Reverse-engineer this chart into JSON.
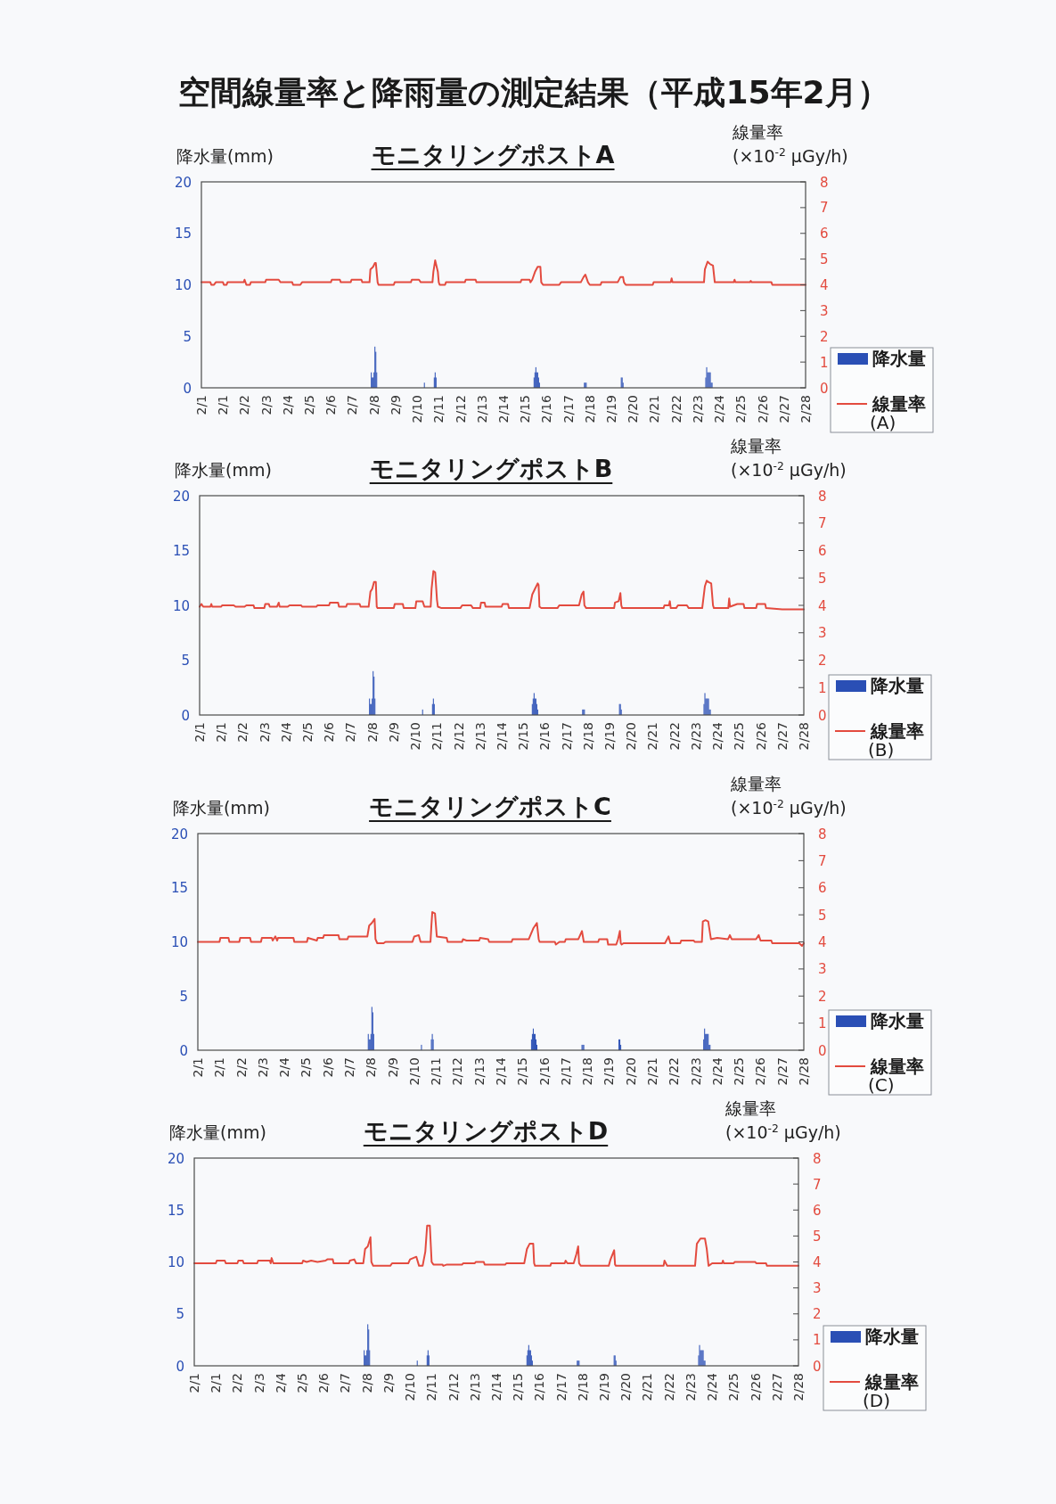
{
  "chart_data": [
    {
      "type": "other",
      "title": "空間線量率と降雨量の測定結果（平成15年2月）"
    },
    {
      "type": "bar",
      "title": "モニタリングポストA",
      "ylabel": "降水量(mm)",
      "y2label": "線量率 (×10$^{-2}$ μGy/h)",
      "legend": "right",
      "xlim": [
        "--02-01T00:00",
        "--03-01T00:00"
      ],
      "xticks": [
        {
          "value": "--02-01T00:00",
          "label": "2/1"
        },
        {
          "value": "--02-01T23:59",
          "label": "2/1"
        },
        {
          "value": "--02-02T23:59",
          "label": "2/2"
        },
        {
          "value": "--02-03T23:59",
          "label": "2/3"
        },
        {
          "value": "--02-04T23:59",
          "label": "2/4"
        },
        {
          "value": "--02-05T23:59",
          "label": "2/5"
        },
        {
          "value": "--02-06T23:59",
          "label": "2/6"
        },
        {
          "value": "--02-07T23:59",
          "label": "2/7"
        },
        {
          "value": "--02-08T23:59",
          "label": "2/8"
        },
        {
          "value": "--02-09T23:59",
          "label": "2/9"
        },
        {
          "value": "--02-10T23:59",
          "label": "2/10"
        },
        {
          "value": "--02-11T23:59",
          "label": "2/11"
        },
        {
          "value": "--02-12T23:59",
          "label": "2/12"
        },
        {
          "value": "--02-13T23:59",
          "label": "2/13"
        },
        {
          "value": "--02-14T23:59",
          "label": "2/14"
        },
        {
          "value": "--02-15T23:59",
          "label": "2/15"
        },
        {
          "value": "--02-16T23:59",
          "label": "2/16"
        },
        {
          "value": "--02-17T23:59",
          "label": "2/17"
        },
        {
          "value": "--02-18T23:59",
          "label": "2/18"
        },
        {
          "value": "--02-19T23:59",
          "label": "2/19"
        },
        {
          "value": "--02-20T23:59",
          "label": "2/20"
        },
        {
          "value": "--02-21T23:59",
          "label": "2/21"
        },
        {
          "value": "--02-22T23:59",
          "label": "2/22"
        },
        {
          "value": "--02-23T23:59",
          "label": "2/23"
        },
        {
          "value": "--02-24T23:59",
          "label": "2/24"
        },
        {
          "value": "--02-25T23:59",
          "label": "2/25"
        },
        {
          "value": "--02-26T23:59",
          "label": "2/26"
        },
        {
          "value": "--02-27T23:59",
          "label": "2/27"
        },
        {
          "value": "--02-28T23:59",
          "label": "2/28"
        }
      ],
      "ylim": [
        0,
        20
      ],
      "yticks": [
        0,
        5,
        10,
        15,
        20
      ],
      "y2lim": [
        0,
        8
      ],
      "y2ticks": [
        0,
        1,
        2,
        3,
        4,
        5,
        6,
        7,
        8
      ],
      "series": [
        {
          "name": "降水量",
          "type": "bar",
          "color": "#2a4fb5",
          "x": [
            "--02-08T21:00",
            "--02-08T22:00",
            "--02-08T23:00",
            "--02-09T00:00",
            "--02-09T01:00",
            "--02-09T02:00",
            "--02-09T03:00",
            "--02-11T08:00",
            "--02-11T19:00",
            "--02-11T20:00",
            "--02-11T21:00",
            "--02-16T10:00",
            "--02-16T11:00",
            "--02-16T12:00",
            "--02-16T13:00",
            "--02-16T14:00",
            "--02-16T15:00",
            "--02-16T16:00",
            "--02-18T18:00",
            "--02-18T19:00",
            "--02-18T20:00",
            "--02-20T11:00",
            "--02-20T12:00",
            "--02-20T13:00",
            "--02-24T09:00",
            "--02-24T10:00",
            "--02-24T11:00",
            "--02-24T12:00",
            "--02-24T13:00",
            "--02-24T14:00",
            "--02-24T15:00",
            "--02-24T16:00"
          ],
          "values": [
            1.5,
            1.0,
            1.0,
            1.5,
            4.0,
            3.5,
            1.5,
            0.5,
            1.0,
            1.5,
            1.0,
            1.0,
            1.5,
            2.0,
            1.5,
            1.5,
            1.0,
            0.5,
            0.5,
            0.5,
            0.5,
            1.0,
            1.0,
            0.5,
            1.0,
            2.0,
            1.5,
            1.5,
            1.5,
            1.5,
            0.5,
            0.5
          ]
        },
        {
          "name": "線量率 (A)",
          "type": "line",
          "axis": "y2",
          "color": "#e34b3f",
          "x": [
            "--02-01T00:00",
            "--02-01T10:00",
            "--02-01T11:00",
            "--02-01T14:00",
            "--02-01T16:00",
            "--02-02T00:00",
            "--02-02T01:00",
            "--02-02T04:00",
            "--02-02T05:00",
            "--02-02T23:00",
            "--02-03T00:00",
            "--02-03T01:00",
            "--02-03T02:00",
            "--02-03T06:00",
            "--02-03T07:00",
            "--02-03T23:00",
            "--02-04T00:00",
            "--02-04T14:00",
            "--02-04T16:00",
            "--02-05T05:00",
            "--02-05T06:00",
            "--02-05T14:00",
            "--02-05T16:00",
            "--02-07T00:00",
            "--02-07T01:00",
            "--02-07T10:00",
            "--02-07T11:00",
            "--02-07T22:00",
            "--02-07T23:00",
            "--02-08T10:00",
            "--02-08T11:00",
            "--02-08T19:00",
            "--02-08T20:00",
            "--02-08T23:00",
            "--02-09T01:00",
            "--02-09T02:00",
            "--02-09T04:00",
            "--02-09T05:00",
            "--02-09T22:00",
            "--02-09T23:00",
            "--02-10T17:00",
            "--02-10T18:00",
            "--02-11T02:00",
            "--02-11T04:00",
            "--02-11T17:00",
            "--02-11T18:00",
            "--02-11T20:00",
            "--02-11T23:00",
            "--02-12T00:00",
            "--02-12T01:00",
            "--02-12T07:00",
            "--02-12T08:00",
            "--02-13T05:00",
            "--02-13T06:00",
            "--02-13T17:00",
            "--02-13T18:00",
            "--02-15T19:00",
            "--02-15T20:00",
            "--02-16T05:00",
            "--02-16T06:00",
            "--02-16T08:00",
            "--02-16T11:00",
            "--02-16T14:00",
            "--02-16T17:00",
            "--02-16T18:00",
            "--02-16T20:00",
            "--02-17T14:00",
            "--02-17T16:00",
            "--02-18T14:00",
            "--02-18T17:00",
            "--02-18T19:00",
            "--02-18T22:00",
            "--02-19T00:00",
            "--02-19T12:00",
            "--02-19T13:00",
            "--02-20T07:00",
            "--02-20T10:00",
            "--02-20T13:00",
            "--02-20T14:00",
            "--02-20T16:00",
            "--02-21T22:00",
            "--02-21T23:00",
            "--02-22T18:00",
            "--02-22T19:00",
            "--02-22T20:00",
            "--02-24T07:00",
            "--02-24T08:00",
            "--02-24T11:00",
            "--02-24T14:00",
            "--02-24T17:00",
            "--02-24T19:00",
            "--02-25T16:00",
            "--02-25T17:00",
            "--02-25T18:00",
            "--02-26T10:00",
            "--02-26T11:00",
            "--02-26T12:00",
            "--02-27T10:00",
            "--02-27T11:00",
            "--03-01T00:00"
          ],
          "values": [
            4.1,
            4.1,
            4.0,
            4.0,
            4.1,
            4.1,
            4.0,
            4.0,
            4.1,
            4.1,
            4.2,
            4.1,
            4.0,
            4.0,
            4.1,
            4.1,
            4.2,
            4.2,
            4.1,
            4.1,
            4.0,
            4.0,
            4.1,
            4.1,
            4.2,
            4.2,
            4.1,
            4.1,
            4.2,
            4.2,
            4.1,
            4.1,
            4.6,
            4.7,
            4.85,
            4.85,
            4.1,
            4.0,
            4.0,
            4.1,
            4.1,
            4.2,
            4.2,
            4.1,
            4.1,
            4.5,
            4.95,
            4.5,
            4.1,
            4.0,
            4.0,
            4.1,
            4.1,
            4.2,
            4.2,
            4.1,
            4.1,
            4.2,
            4.2,
            4.1,
            4.2,
            4.5,
            4.7,
            4.7,
            4.1,
            4.0,
            4.0,
            4.1,
            4.1,
            4.3,
            4.4,
            4.1,
            4.0,
            4.0,
            4.1,
            4.1,
            4.3,
            4.3,
            4.1,
            4.0,
            4.0,
            4.1,
            4.1,
            4.25,
            4.1,
            4.1,
            4.6,
            4.9,
            4.8,
            4.75,
            4.1,
            4.1,
            4.2,
            4.1,
            4.1,
            4.15,
            4.1,
            4.1,
            4.0,
            4.0
          ]
        }
      ]
    },
    {
      "type": "bar",
      "title": "モニタリングポストB",
      "ylabel": "降水量(mm)",
      "y2label": "線量率 (×10$^{-2}$ μGy/h)",
      "legend": "right",
      "xlim": [
        "--02-01T00:00",
        "--03-01T00:00"
      ],
      "xticks": [
        {
          "value": "--02-01T00:00",
          "label": "2/1"
        },
        {
          "value": "--02-01T23:59",
          "label": "2/1"
        },
        {
          "value": "--02-02T23:59",
          "label": "2/2"
        },
        {
          "value": "--02-03T23:59",
          "label": "2/3"
        },
        {
          "value": "--02-04T23:59",
          "label": "2/4"
        },
        {
          "value": "--02-05T23:59",
          "label": "2/5"
        },
        {
          "value": "--02-06T23:59",
          "label": "2/6"
        },
        {
          "value": "--02-07T23:59",
          "label": "2/7"
        },
        {
          "value": "--02-08T23:59",
          "label": "2/8"
        },
        {
          "value": "--02-09T23:59",
          "label": "2/9"
        },
        {
          "value": "--02-10T23:59",
          "label": "2/10"
        },
        {
          "value": "--02-11T23:59",
          "label": "2/11"
        },
        {
          "value": "--02-12T23:59",
          "label": "2/12"
        },
        {
          "value": "--02-13T23:59",
          "label": "2/13"
        },
        {
          "value": "--02-14T23:59",
          "label": "2/14"
        },
        {
          "value": "--02-15T23:59",
          "label": "2/15"
        },
        {
          "value": "--02-16T23:59",
          "label": "2/16"
        },
        {
          "value": "--02-17T23:59",
          "label": "2/17"
        },
        {
          "value": "--02-18T23:59",
          "label": "2/18"
        },
        {
          "value": "--02-19T23:59",
          "label": "2/19"
        },
        {
          "value": "--02-20T23:59",
          "label": "2/20"
        },
        {
          "value": "--02-21T23:59",
          "label": "2/21"
        },
        {
          "value": "--02-22T23:59",
          "label": "2/22"
        },
        {
          "value": "--02-23T23:59",
          "label": "2/23"
        },
        {
          "value": "--02-24T23:59",
          "label": "2/24"
        },
        {
          "value": "--02-25T23:59",
          "label": "2/25"
        },
        {
          "value": "--02-26T23:59",
          "label": "2/26"
        },
        {
          "value": "--02-27T23:59",
          "label": "2/27"
        },
        {
          "value": "--02-28T23:59",
          "label": "2/28"
        }
      ],
      "ylim": [
        0,
        20
      ],
      "yticks": [
        0,
        5,
        10,
        15,
        20
      ],
      "y2lim": [
        0,
        8
      ],
      "y2ticks": [
        0,
        1,
        2,
        3,
        4,
        5,
        6,
        7,
        8
      ],
      "series": [
        {
          "name": "降水量",
          "type": "bar",
          "color": "#2a4fb5",
          "x": [
            "--02-08T21:00",
            "--02-08T22:00",
            "--02-08T23:00",
            "--02-09T00:00",
            "--02-09T01:00",
            "--02-09T02:00",
            "--02-09T03:00",
            "--02-11T08:00",
            "--02-11T19:00",
            "--02-11T20:00",
            "--02-11T21:00",
            "--02-16T10:00",
            "--02-16T11:00",
            "--02-16T12:00",
            "--02-16T13:00",
            "--02-16T14:00",
            "--02-16T15:00",
            "--02-16T16:00",
            "--02-18T18:00",
            "--02-18T19:00",
            "--02-18T20:00",
            "--02-20T11:00",
            "--02-20T12:00",
            "--02-20T13:00",
            "--02-24T09:00",
            "--02-24T10:00",
            "--02-24T11:00",
            "--02-24T12:00",
            "--02-24T13:00",
            "--02-24T14:00",
            "--02-24T15:00",
            "--02-24T16:00"
          ],
          "values": [
            1.5,
            1.0,
            1.0,
            1.5,
            4.0,
            3.5,
            1.5,
            0.5,
            1.0,
            1.5,
            1.0,
            1.0,
            1.5,
            2.0,
            1.5,
            1.5,
            1.0,
            0.5,
            0.5,
            0.5,
            0.5,
            1.0,
            1.0,
            0.5,
            1.0,
            2.0,
            1.5,
            1.5,
            1.5,
            1.5,
            0.5,
            0.5
          ]
        },
        {
          "name": "線量率 (B)",
          "type": "line",
          "axis": "y2",
          "color": "#e34b3f",
          "x": [
            "--02-01T00:00",
            "--02-01T02:00",
            "--02-01T04:00",
            "--02-01T12:00",
            "--02-01T13:00",
            "--02-01T14:00",
            "--02-02T00:00",
            "--02-02T01:00",
            "--02-02T14:00",
            "--02-02T16:00",
            "--02-03T02:00",
            "--02-03T04:00",
            "--02-03T12:00",
            "--02-03T13:00",
            "--02-04T00:00",
            "--02-04T01:00",
            "--02-04T05:00",
            "--02-04T06:00",
            "--02-04T14:00",
            "--02-04T16:00",
            "--02-04T17:00",
            "--02-05T02:00",
            "--02-05T04:00",
            "--02-05T17:00",
            "--02-05T18:00",
            "--02-06T10:00",
            "--02-06T11:00",
            "--02-07T00:00",
            "--02-07T01:00",
            "--02-07T10:00",
            "--02-07T11:00",
            "--02-07T19:00",
            "--02-07T20:00",
            "--02-08T10:00",
            "--02-08T11:00",
            "--02-08T20:00",
            "--02-08T22:00",
            "--02-09T00:00",
            "--02-09T02:00",
            "--02-09T04:00",
            "--02-09T05:00",
            "--02-09T06:00",
            "--02-10T00:00",
            "--02-10T01:00",
            "--02-10T10:00",
            "--02-10T11:00",
            "--02-11T00:00",
            "--02-11T01:00",
            "--02-11T08:00",
            "--02-11T10:00",
            "--02-11T17:00",
            "--02-11T18:00",
            "--02-11T20:00",
            "--02-11T22:00",
            "--02-12T00:00",
            "--02-12T01:00",
            "--02-12T05:00",
            "--02-13T02:00",
            "--02-13T04:00",
            "--02-13T14:00",
            "--02-13T16:00",
            "--02-14T00:00",
            "--02-14T01:00",
            "--02-14T05:00",
            "--02-14T06:00",
            "--02-15T00:00",
            "--02-15T01:00",
            "--02-15T07:00",
            "--02-15T08:00",
            "--02-16T07:00",
            "--02-16T10:00",
            "--02-16T13:00",
            "--02-16T16:00",
            "--02-16T17:00",
            "--02-16T18:00",
            "--02-16T20:00",
            "--02-17T14:00",
            "--02-17T16:00",
            "--02-18T14:00",
            "--02-18T17:00",
            "--02-18T19:00",
            "--02-18T20:00",
            "--02-18T22:00",
            "--02-20T05:00",
            "--02-20T06:00",
            "--02-20T10:00",
            "--02-20T12:00",
            "--02-20T13:00",
            "--02-20T14:00",
            "--02-22T12:00",
            "--02-22T13:00",
            "--02-22T18:00",
            "--02-22T19:00",
            "--02-22T20:00",
            "--02-23T02:00",
            "--02-23T04:00",
            "--02-23T14:00",
            "--02-23T16:00",
            "--02-24T07:00",
            "--02-24T10:00",
            "--02-24T12:00",
            "--02-24T14:00",
            "--02-24T17:00",
            "--02-24T19:00",
            "--02-24T20:00",
            "--02-25T12:00",
            "--02-25T13:00",
            "--02-25T14:00",
            "--02-25T22:00",
            "--02-26T05:00",
            "--02-26T06:00",
            "--02-26T19:00",
            "--02-26T20:00",
            "--02-27T05:00",
            "--02-27T06:00",
            "--02-28T00:00",
            "--03-01T00:00"
          ],
          "values": [
            3.95,
            4.05,
            3.95,
            3.95,
            4.05,
            3.95,
            3.95,
            4.0,
            4.0,
            3.95,
            3.95,
            4.0,
            4.0,
            3.9,
            3.9,
            4.05,
            4.05,
            3.95,
            3.95,
            4.1,
            3.95,
            3.95,
            4.0,
            4.0,
            3.95,
            3.95,
            4.0,
            4.0,
            4.1,
            4.1,
            3.95,
            3.95,
            4.05,
            4.05,
            3.95,
            3.95,
            4.5,
            4.6,
            4.85,
            4.85,
            3.95,
            3.9,
            3.9,
            4.05,
            4.05,
            3.9,
            3.9,
            4.15,
            4.15,
            3.95,
            3.95,
            4.6,
            5.25,
            5.2,
            4.2,
            3.95,
            3.9,
            3.9,
            4.0,
            4.0,
            3.9,
            3.9,
            4.1,
            4.1,
            3.95,
            3.95,
            4.05,
            4.05,
            3.9,
            3.9,
            4.4,
            4.6,
            4.8,
            4.75,
            3.95,
            3.9,
            3.9,
            4.0,
            4.0,
            4.4,
            4.5,
            4.0,
            3.9,
            3.9,
            4.1,
            4.15,
            4.45,
            4.0,
            3.9,
            3.9,
            4.0,
            4.0,
            4.15,
            3.9,
            3.9,
            4.0,
            4.0,
            3.9,
            3.9,
            4.7,
            4.9,
            4.85,
            4.8,
            4.0,
            3.9,
            3.9,
            4.25,
            3.95,
            4.05,
            4.05,
            3.9,
            3.9,
            4.05,
            4.05,
            3.9,
            3.85,
            3.85
          ]
        }
      ]
    },
    {
      "type": "bar",
      "title": "モニタリングポストC",
      "ylabel": "降水量(mm)",
      "y2label": "線量率 (×10$^{-2}$ μGy/h)",
      "legend": "right",
      "xlim": [
        "--02-01T00:00",
        "--03-01T00:00"
      ],
      "xticks": [
        {
          "value": "--02-01T00:00",
          "label": "2/1"
        },
        {
          "value": "--02-01T23:59",
          "label": "2/1"
        },
        {
          "value": "--02-02T23:59",
          "label": "2/2"
        },
        {
          "value": "--02-03T23:59",
          "label": "2/3"
        },
        {
          "value": "--02-04T23:59",
          "label": "2/4"
        },
        {
          "value": "--02-05T23:59",
          "label": "2/5"
        },
        {
          "value": "--02-06T23:59",
          "label": "2/6"
        },
        {
          "value": "--02-07T23:59",
          "label": "2/7"
        },
        {
          "value": "--02-08T23:59",
          "label": "2/8"
        },
        {
          "value": "--02-09T23:59",
          "label": "2/9"
        },
        {
          "value": "--02-10T23:59",
          "label": "2/10"
        },
        {
          "value": "--02-11T23:59",
          "label": "2/11"
        },
        {
          "value": "--02-12T23:59",
          "label": "2/12"
        },
        {
          "value": "--02-13T23:59",
          "label": "2/13"
        },
        {
          "value": "--02-14T23:59",
          "label": "2/14"
        },
        {
          "value": "--02-15T23:59",
          "label": "2/15"
        },
        {
          "value": "--02-16T23:59",
          "label": "2/16"
        },
        {
          "value": "--02-17T23:59",
          "label": "2/17"
        },
        {
          "value": "--02-18T23:59",
          "label": "2/18"
        },
        {
          "value": "--02-19T23:59",
          "label": "2/19"
        },
        {
          "value": "--02-20T23:59",
          "label": "2/20"
        },
        {
          "value": "--02-21T23:59",
          "label": "2/21"
        },
        {
          "value": "--02-22T23:59",
          "label": "2/22"
        },
        {
          "value": "--02-23T23:59",
          "label": "2/23"
        },
        {
          "value": "--02-24T23:59",
          "label": "2/24"
        },
        {
          "value": "--02-25T23:59",
          "label": "2/25"
        },
        {
          "value": "--02-26T23:59",
          "label": "2/26"
        },
        {
          "value": "--02-27T23:59",
          "label": "2/27"
        },
        {
          "value": "--02-28T23:59",
          "label": "2/28"
        }
      ],
      "ylim": [
        0,
        20
      ],
      "yticks": [
        0,
        5,
        10,
        15,
        20
      ],
      "y2lim": [
        0,
        8
      ],
      "y2ticks": [
        0,
        1,
        2,
        3,
        4,
        5,
        6,
        7,
        8
      ],
      "series": [
        {
          "name": "降水量",
          "type": "bar",
          "color": "#2a4fb5",
          "x": [
            "--02-08T21:00",
            "--02-08T22:00",
            "--02-08T23:00",
            "--02-09T00:00",
            "--02-09T01:00",
            "--02-09T02:00",
            "--02-09T03:00",
            "--02-11T08:00",
            "--02-11T19:00",
            "--02-11T20:00",
            "--02-11T21:00",
            "--02-16T10:00",
            "--02-16T11:00",
            "--02-16T12:00",
            "--02-16T13:00",
            "--02-16T14:00",
            "--02-16T15:00",
            "--02-16T16:00",
            "--02-18T18:00",
            "--02-18T19:00",
            "--02-18T20:00",
            "--02-20T11:00",
            "--02-20T12:00",
            "--02-20T13:00",
            "--02-24T09:00",
            "--02-24T10:00",
            "--02-24T11:00",
            "--02-24T12:00",
            "--02-24T13:00",
            "--02-24T14:00",
            "--02-24T15:00",
            "--02-24T16:00"
          ],
          "values": [
            1.5,
            1.0,
            1.0,
            1.5,
            4.0,
            3.5,
            1.5,
            0.5,
            1.0,
            1.5,
            1.0,
            1.0,
            1.5,
            2.0,
            1.5,
            1.5,
            1.0,
            0.5,
            0.5,
            0.5,
            0.5,
            1.0,
            1.0,
            0.5,
            1.0,
            2.0,
            1.5,
            1.5,
            1.5,
            1.5,
            0.5,
            0.5
          ]
        },
        {
          "name": "線量率 (C)",
          "type": "line",
          "axis": "y2",
          "color": "#e34b3f",
          "x": [
            "--02-01T00:00",
            "--02-02T00:00",
            "--02-02T01:00",
            "--02-02T10:00",
            "--02-02T11:00",
            "--02-02T22:00",
            "--02-02T23:00",
            "--02-03T10:00",
            "--02-03T11:00",
            "--02-03T22:00",
            "--02-03T23:00",
            "--02-04T10:00",
            "--02-04T11:00",
            "--02-04T14:00",
            "--02-04T16:00",
            "--02-04T17:00",
            "--02-05T10:00",
            "--02-05T11:00",
            "--02-06T01:00",
            "--02-06T02:00",
            "--02-06T12:00",
            "--02-06T13:00",
            "--02-06T19:00",
            "--02-06T20:00",
            "--02-07T12:00",
            "--02-07T13:00",
            "--02-07T22:00",
            "--02-07T23:00",
            "--02-08T20:00",
            "--02-08T22:00",
            "--02-09T01:00",
            "--02-09T04:00",
            "--02-09T05:00",
            "--02-09T07:00",
            "--02-09T14:00",
            "--02-09T16:00",
            "--02-10T22:00",
            "--02-11T00:00",
            "--02-11T05:00",
            "--02-11T07:00",
            "--02-11T18:00",
            "--02-11T19:00",
            "--02-11T20:00",
            "--02-11T23:00",
            "--02-12T01:00",
            "--02-12T12:00",
            "--02-12T13:00",
            "--02-13T05:00",
            "--02-13T06:00",
            "--02-13T10:00",
            "--02-14T00:00",
            "--02-14T01:00",
            "--02-14T10:00",
            "--02-14T11:00",
            "--02-15T12:00",
            "--02-15T13:00",
            "--02-16T07:00",
            "--02-16T12:00",
            "--02-16T16:00",
            "--02-16T18:00",
            "--02-16T19:00",
            "--02-17T12:00",
            "--02-17T13:00",
            "--02-17T17:00",
            "--02-17T23:00",
            "--02-18T00:00",
            "--02-18T14:00",
            "--02-18T18:00",
            "--02-18T20:00",
            "--02-19T12:00",
            "--02-19T13:00",
            "--02-19T22:00",
            "--02-19T23:00",
            "--02-20T08:00",
            "--02-20T10:00",
            "--02-20T12:00",
            "--02-20T13:00",
            "--02-20T14:00",
            "--02-20T16:00",
            "--02-22T14:00",
            "--02-22T18:00",
            "--02-22T20:00",
            "--02-23T07:00",
            "--02-23T08:00",
            "--02-23T22:00",
            "--02-23T23:00",
            "--02-24T07:00",
            "--02-24T08:00",
            "--02-24T11:00",
            "--02-24T14:00",
            "--02-24T17:00",
            "--02-25T00:00",
            "--02-25T12:00",
            "--02-25T14:00",
            "--02-25T16:00",
            "--02-26T19:00",
            "--02-26T22:00",
            "--02-27T00:00",
            "--02-27T12:00",
            "--02-27T13:00",
            "--02-28T19:00",
            "--02-28T22:00",
            "--03-01T00:00"
          ],
          "values": [
            4.0,
            4.0,
            4.15,
            4.15,
            4.0,
            4.0,
            4.15,
            4.15,
            4.0,
            4.0,
            4.15,
            4.15,
            4.05,
            4.2,
            4.05,
            4.15,
            4.15,
            4.0,
            4.0,
            4.15,
            4.05,
            4.15,
            4.15,
            4.25,
            4.25,
            4.1,
            4.1,
            4.2,
            4.2,
            4.6,
            4.7,
            4.85,
            4.1,
            3.95,
            3.95,
            4.0,
            4.0,
            4.2,
            4.25,
            4.0,
            4.0,
            4.6,
            5.1,
            5.05,
            4.2,
            4.15,
            4.0,
            4.0,
            4.1,
            4.05,
            4.05,
            4.15,
            4.1,
            4.0,
            4.0,
            4.1,
            4.1,
            4.5,
            4.7,
            4.1,
            4.0,
            4.0,
            3.9,
            4.0,
            4.0,
            4.1,
            4.1,
            4.4,
            4.0,
            4.0,
            4.1,
            4.1,
            3.9,
            3.9,
            4.1,
            4.4,
            3.95,
            3.9,
            3.95,
            3.95,
            4.2,
            3.95,
            3.95,
            4.05,
            4.05,
            4.0,
            4.0,
            4.75,
            4.8,
            4.75,
            4.1,
            4.15,
            4.1,
            4.25,
            4.1,
            4.1,
            4.25,
            4.05,
            4.05,
            3.95,
            3.95,
            3.85,
            3.95
          ]
        }
      ]
    },
    {
      "type": "bar",
      "title": "モニタリングポストD",
      "ylabel": "降水量(mm)",
      "y2label": "線量率 (×10$^{-2}$ μGy/h)",
      "legend": "right",
      "xlim": [
        "--02-01T00:00",
        "--03-01T00:00"
      ],
      "xticks": [
        {
          "value": "--02-01T00:00",
          "label": "2/1"
        },
        {
          "value": "--02-01T23:59",
          "label": "2/1"
        },
        {
          "value": "--02-02T23:59",
          "label": "2/2"
        },
        {
          "value": "--02-03T23:59",
          "label": "2/3"
        },
        {
          "value": "--02-04T23:59",
          "label": "2/4"
        },
        {
          "value": "--02-05T23:59",
          "label": "2/5"
        },
        {
          "value": "--02-06T23:59",
          "label": "2/6"
        },
        {
          "value": "--02-07T23:59",
          "label": "2/7"
        },
        {
          "value": "--02-08T23:59",
          "label": "2/8"
        },
        {
          "value": "--02-09T23:59",
          "label": "2/9"
        },
        {
          "value": "--02-10T23:59",
          "label": "2/10"
        },
        {
          "value": "--02-11T23:59",
          "label": "2/11"
        },
        {
          "value": "--02-12T23:59",
          "label": "2/12"
        },
        {
          "value": "--02-13T23:59",
          "label": "2/13"
        },
        {
          "value": "--02-14T23:59",
          "label": "2/14"
        },
        {
          "value": "--02-15T23:59",
          "label": "2/15"
        },
        {
          "value": "--02-16T23:59",
          "label": "2/16"
        },
        {
          "value": "--02-17T23:59",
          "label": "2/17"
        },
        {
          "value": "--02-18T23:59",
          "label": "2/18"
        },
        {
          "value": "--02-19T23:59",
          "label": "2/19"
        },
        {
          "value": "--02-20T23:59",
          "label": "2/20"
        },
        {
          "value": "--02-21T23:59",
          "label": "2/21"
        },
        {
          "value": "--02-22T23:59",
          "label": "2/22"
        },
        {
          "value": "--02-23T23:59",
          "label": "2/23"
        },
        {
          "value": "--02-24T23:59",
          "label": "2/24"
        },
        {
          "value": "--02-25T23:59",
          "label": "2/25"
        },
        {
          "value": "--02-26T23:59",
          "label": "2/26"
        },
        {
          "value": "--02-27T23:59",
          "label": "2/27"
        },
        {
          "value": "--02-28T23:59",
          "label": "2/28"
        }
      ],
      "ylim": [
        0,
        20
      ],
      "yticks": [
        0,
        5,
        10,
        15,
        20
      ],
      "y2lim": [
        0,
        8
      ],
      "y2ticks": [
        0,
        1,
        2,
        3,
        4,
        5,
        6,
        7,
        8
      ],
      "series": [
        {
          "name": "降水量",
          "type": "bar",
          "color": "#2a4fb5",
          "x": [
            "--02-08T21:00",
            "--02-08T22:00",
            "--02-08T23:00",
            "--02-09T00:00",
            "--02-09T01:00",
            "--02-09T02:00",
            "--02-09T03:00",
            "--02-11T08:00",
            "--02-11T19:00",
            "--02-11T20:00",
            "--02-11T21:00",
            "--02-16T10:00",
            "--02-16T11:00",
            "--02-16T12:00",
            "--02-16T13:00",
            "--02-16T14:00",
            "--02-16T15:00",
            "--02-16T16:00",
            "--02-18T18:00",
            "--02-18T19:00",
            "--02-18T20:00",
            "--02-20T11:00",
            "--02-20T12:00",
            "--02-20T13:00",
            "--02-24T09:00",
            "--02-24T10:00",
            "--02-24T11:00",
            "--02-24T12:00",
            "--02-24T13:00",
            "--02-24T14:00",
            "--02-24T15:00",
            "--02-24T16:00"
          ],
          "values": [
            1.5,
            1.0,
            1.0,
            1.5,
            4.0,
            3.5,
            1.5,
            0.5,
            1.0,
            1.5,
            1.0,
            1.0,
            1.5,
            2.0,
            1.5,
            1.5,
            1.0,
            0.5,
            0.5,
            0.5,
            0.5,
            1.0,
            1.0,
            0.5,
            1.0,
            2.0,
            1.5,
            1.5,
            1.5,
            1.5,
            0.5,
            0.5
          ]
        },
        {
          "name": "線量率 (D)",
          "type": "line",
          "axis": "y2",
          "color": "#e34b3f",
          "x": [
            "--02-01T00:00",
            "--02-02T00:00",
            "--02-02T01:00",
            "--02-02T10:00",
            "--02-02T11:00",
            "--02-03T00:00",
            "--02-03T01:00",
            "--02-03T06:00",
            "--02-03T07:00",
            "--02-03T22:00",
            "--02-03T23:00",
            "--02-04T12:00",
            "--02-04T13:00",
            "--02-04T14:00",
            "--02-04T16:00",
            "--02-06T00:00",
            "--02-06T01:00",
            "--02-06T05:00",
            "--02-06T10:00",
            "--02-06T17:00",
            "--02-07T02:00",
            "--02-07T04:00",
            "--02-07T10:00",
            "--02-07T11:00",
            "--02-08T04:00",
            "--02-08T05:00",
            "--02-08T10:00",
            "--02-08T12:00",
            "--02-08T20:00",
            "--02-08T22:00",
            "--02-09T01:00",
            "--02-09T04:00",
            "--02-09T05:00",
            "--02-09T07:00",
            "--02-10T02:00",
            "--02-10T04:00",
            "--02-10T22:00",
            "--02-11T00:00",
            "--02-11T07:00",
            "--02-11T10:00",
            "--02-11T14:00",
            "--02-11T17:00",
            "--02-11T19:00",
            "--02-11T22:00",
            "--02-12T00:00",
            "--02-12T02:00",
            "--02-12T12:00",
            "--02-12T13:00",
            "--02-12T17:00",
            "--02-13T10:00",
            "--02-13T11:00",
            "--02-14T00:00",
            "--02-14T01:00",
            "--02-14T10:00",
            "--02-14T11:00",
            "--02-15T10:00",
            "--02-15T11:00",
            "--02-16T07:00",
            "--02-16T10:00",
            "--02-16T13:00",
            "--02-16T17:00",
            "--02-16T18:00",
            "--02-16T19:00",
            "--02-17T12:00",
            "--02-17T13:00",
            "--02-18T04:00",
            "--02-18T05:00",
            "--02-18T07:00",
            "--02-18T14:00",
            "--02-18T17:00",
            "--02-18T19:00",
            "--02-18T20:00",
            "--02-18T22:00",
            "--02-20T05:00",
            "--02-20T07:00",
            "--02-20T11:00",
            "--02-20T12:00",
            "--02-20T13:00",
            "--02-22T18:00",
            "--02-22T19:00",
            "--02-22T22:00",
            "--02-24T05:00",
            "--02-24T07:00",
            "--02-24T11:00",
            "--02-24T16:00",
            "--02-24T18:00",
            "--02-24T20:00",
            "--02-25T00:00",
            "--02-25T11:00",
            "--02-25T12:00",
            "--02-25T13:00",
            "--02-26T00:00",
            "--02-26T01:00",
            "--02-27T00:00",
            "--02-27T01:00",
            "--02-27T12:00",
            "--02-27T13:00",
            "--03-01T00:00"
          ],
          "values": [
            3.95,
            3.95,
            4.05,
            4.05,
            3.95,
            3.95,
            4.05,
            4.05,
            3.95,
            3.95,
            4.05,
            4.05,
            3.95,
            4.15,
            3.95,
            3.95,
            4.05,
            4.0,
            4.05,
            4.0,
            4.05,
            4.1,
            4.1,
            3.95,
            3.95,
            4.05,
            4.1,
            3.95,
            3.95,
            4.5,
            4.6,
            4.95,
            4.0,
            3.85,
            3.85,
            3.95,
            3.95,
            4.1,
            4.2,
            3.85,
            3.85,
            4.4,
            5.4,
            5.4,
            4.0,
            3.9,
            3.9,
            3.85,
            3.9,
            3.9,
            3.95,
            3.95,
            4.0,
            4.0,
            3.9,
            3.9,
            3.95,
            3.95,
            4.5,
            4.7,
            4.7,
            3.95,
            3.85,
            3.85,
            3.95,
            3.95,
            4.05,
            3.95,
            3.95,
            4.3,
            4.6,
            3.95,
            3.85,
            3.85,
            4.1,
            4.45,
            3.9,
            3.85,
            3.85,
            4.05,
            3.85,
            3.85,
            4.7,
            4.9,
            4.9,
            4.5,
            3.85,
            3.95,
            3.95,
            4.05,
            3.95,
            3.95,
            4.0,
            4.0,
            3.95,
            3.95,
            3.85,
            3.85
          ]
        }
      ]
    }
  ]
}
